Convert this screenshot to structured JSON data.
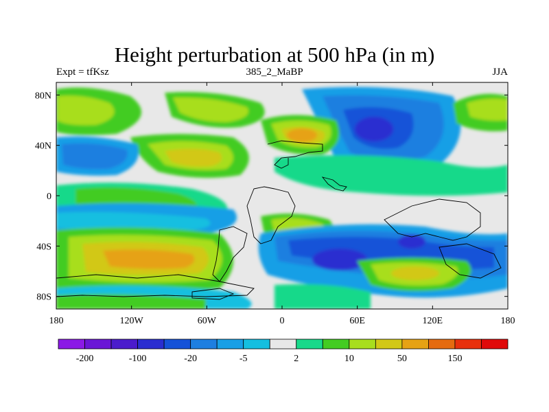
{
  "title": "Height perturbation at 500 hPa (in m)",
  "subtitle_left": "Expt = tfKsz",
  "subtitle_center": "385_2_MaBP",
  "subtitle_right": "JJA",
  "map": {
    "lon_range": [
      -180,
      180
    ],
    "lat_range": [
      -90,
      90
    ],
    "lon_ticks": [
      {
        "value": -180,
        "label": "180"
      },
      {
        "value": -120,
        "label": "120W"
      },
      {
        "value": -60,
        "label": "60W"
      },
      {
        "value": 0,
        "label": "0"
      },
      {
        "value": 60,
        "label": "60E"
      },
      {
        "value": 120,
        "label": "120E"
      },
      {
        "value": 180,
        "label": "180"
      }
    ],
    "lat_ticks": [
      {
        "value": 80,
        "label": "80N"
      },
      {
        "value": 40,
        "label": "40N"
      },
      {
        "value": 0,
        "label": "0"
      },
      {
        "value": -40,
        "label": "40S"
      },
      {
        "value": -80,
        "label": "80S"
      }
    ]
  },
  "colorbar": {
    "colors": [
      "#8b1ae6",
      "#6a16d6",
      "#4b1ccc",
      "#2a2ed0",
      "#1552d8",
      "#1e7fe0",
      "#189fe6",
      "#15bfe0",
      "#e8e8e8",
      "#19d98a",
      "#43cc22",
      "#a8de1e",
      "#d2c816",
      "#e6a214",
      "#e56b10",
      "#e8300c",
      "#e00a0a"
    ],
    "labels": [
      {
        "after_box": 1,
        "text": "-200"
      },
      {
        "after_box": 3,
        "text": "-100"
      },
      {
        "after_box": 5,
        "text": "-20"
      },
      {
        "after_box": 7,
        "text": "-5"
      },
      {
        "after_box": 9,
        "text": "2"
      },
      {
        "after_box": 11,
        "text": "10"
      },
      {
        "after_box": 13,
        "text": "50"
      },
      {
        "after_box": 15,
        "text": "150"
      }
    ]
  }
}
